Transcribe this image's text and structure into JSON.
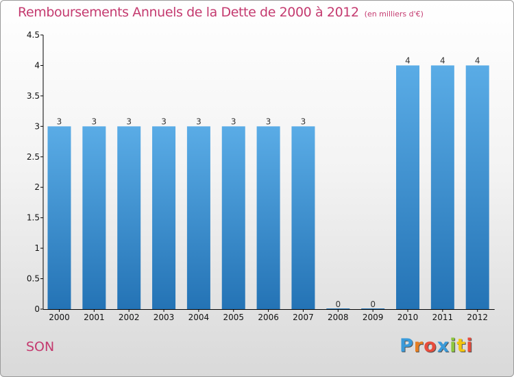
{
  "title": "Remboursements Annuels de la Dette de 2000 à 2012",
  "unit": "(en milliers d'€)",
  "commune": "SON",
  "brand": "Proxiti",
  "brand_colors": [
    "#3a9ad9",
    "#e67e22",
    "#e74c3c",
    "#3a9ad9",
    "#8dc63f",
    "#f1c40f",
    "#e74c3c"
  ],
  "colors": {
    "title": "#c43a6f",
    "bar_top": "#5aace6",
    "bar_bottom": "#2473b5",
    "axis": "#000000"
  },
  "chart_data": {
    "type": "bar",
    "categories": [
      "2000",
      "2001",
      "2002",
      "2003",
      "2004",
      "2005",
      "2006",
      "2007",
      "2008",
      "2009",
      "2010",
      "2011",
      "2012"
    ],
    "values": [
      3,
      3,
      3,
      3,
      3,
      3,
      3,
      3,
      0,
      0,
      4,
      4,
      4
    ],
    "data_labels": [
      "3",
      "3",
      "3",
      "3",
      "3",
      "3",
      "3",
      "3",
      "0",
      "0",
      "4",
      "4",
      "4"
    ],
    "ylim": [
      0,
      4.5
    ],
    "yticks": [
      0,
      0.5,
      1,
      1.5,
      2,
      2.5,
      3,
      3.5,
      4,
      4.5
    ],
    "ytick_labels": [
      "0",
      "0.5",
      "1",
      "1.5",
      "2",
      "2.5",
      "3",
      "3.5",
      "4",
      "4.5"
    ],
    "xlabel": "",
    "ylabel": "",
    "grid": false
  }
}
